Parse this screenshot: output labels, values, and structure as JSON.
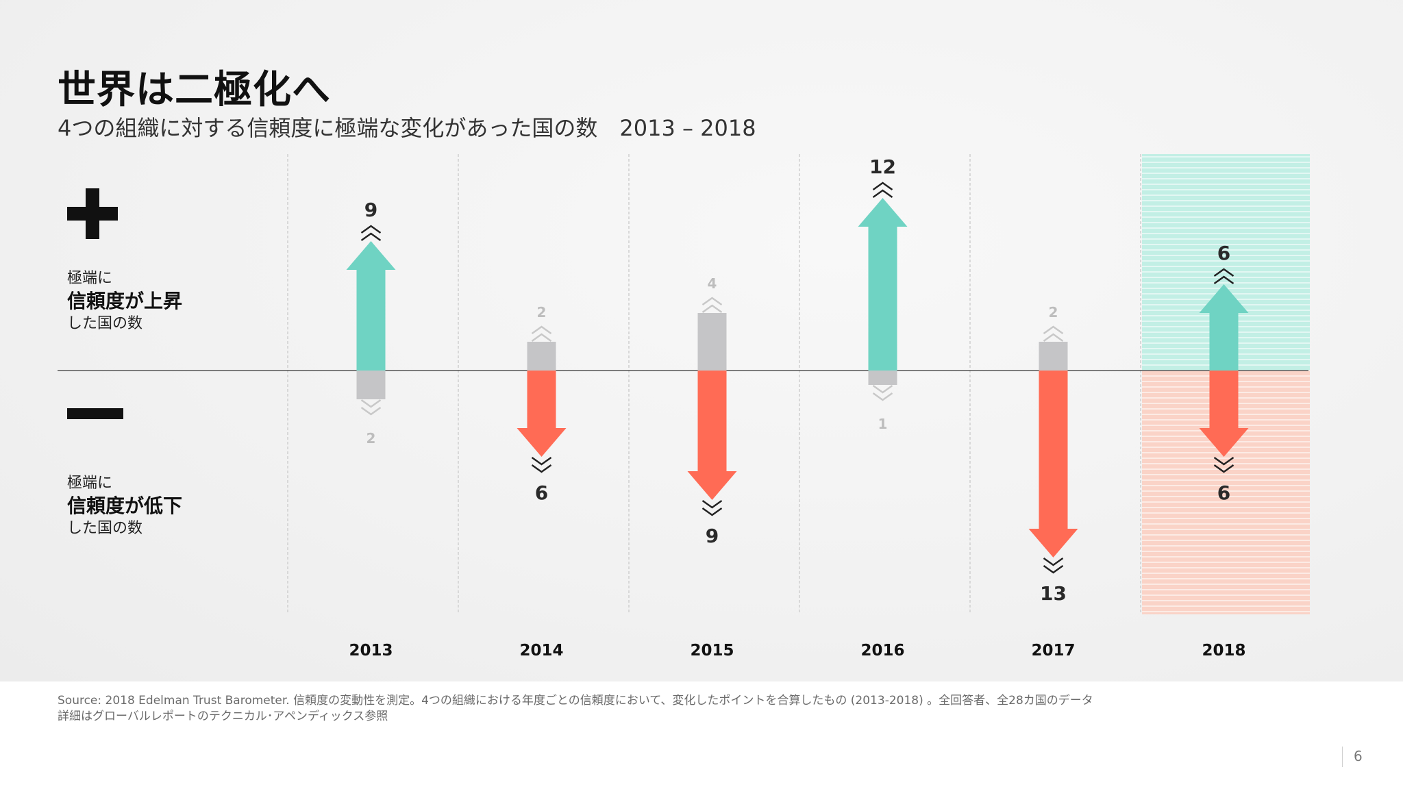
{
  "title": "世界は二極化へ",
  "subtitle": "4つの組織に対する信頼度に極端な変化があった国の数　2013 – 2018",
  "labels": {
    "up": {
      "line1": "極端に",
      "line2": "信頼度が上昇",
      "line3": "した国の数"
    },
    "down": {
      "line1": "極端に",
      "line2": "信頼度が低下",
      "line3": "した国の数"
    }
  },
  "colors": {
    "increase": "#6fd3c3",
    "decrease": "#ff6b55",
    "minor": "#c5c5c7",
    "highlight_up": "#bdeee3",
    "highlight_down": "#fbcfc2"
  },
  "chart_data": {
    "type": "bar",
    "categories": [
      "2013",
      "2014",
      "2015",
      "2016",
      "2017",
      "2018"
    ],
    "series": [
      {
        "values": [
          9,
          2,
          4,
          12,
          2,
          6
        ]
      },
      {
        "values": [
          2,
          6,
          9,
          1,
          13,
          6
        ]
      }
    ],
    "ylim": [
      -13,
      12
    ],
    "highlight_category": "2018"
  },
  "footer": {
    "source_line1": "Source: 2018 Edelman Trust Barometer. 信頼度の変動性を測定。4つの組織における年度ごとの信頼度において、変化したポイントを合算したもの (2013-2018) 。全回答者、全28カ国のデータ",
    "source_line2": "詳細はグローバルレポートのテクニカル･アペンディックス参照",
    "page_number": "6"
  }
}
